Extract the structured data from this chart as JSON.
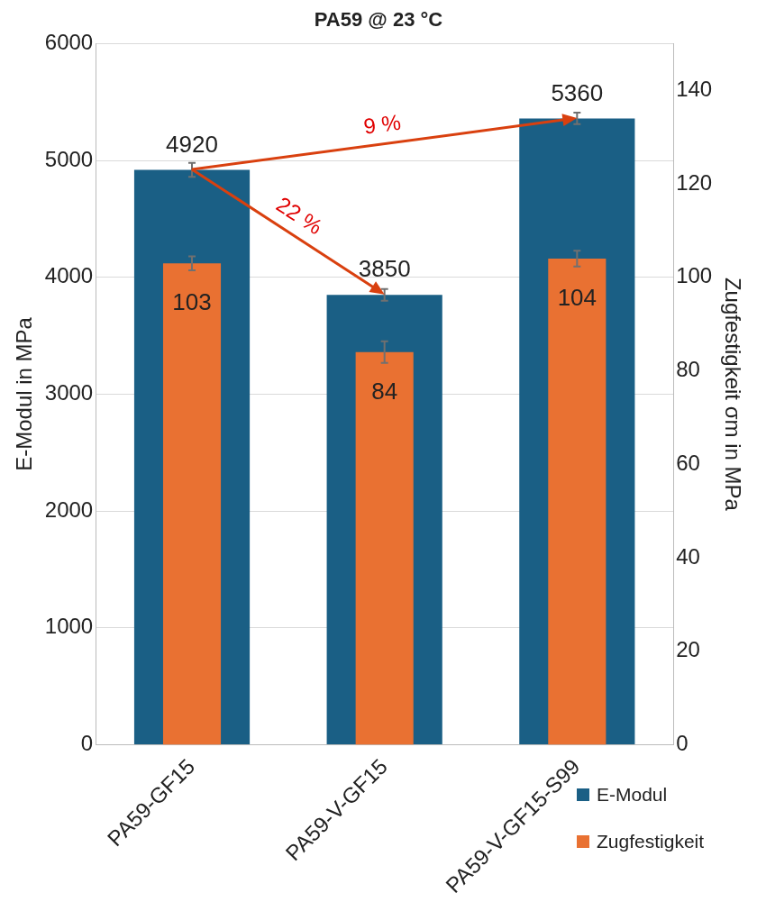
{
  "chart_data": {
    "type": "bar",
    "title": "PA59 @ 23 °C",
    "ylabel": "E-Modul in MPa",
    "y2label": "Zugfestigkeit σm in MPa",
    "categories": [
      "PA59-GF15",
      "PA59-V-GF15",
      "PA59-V-GF15-S99"
    ],
    "series": [
      {
        "name": "E-Modul",
        "color": "#1a5f85",
        "values": [
          4920,
          3850,
          5360
        ],
        "errors": [
          60,
          50,
          50
        ]
      },
      {
        "name": "Zugfestigkeit",
        "color": "#e97132",
        "values": [
          103,
          84,
          104
        ],
        "errors": [
          1.5,
          2.3,
          1.7
        ],
        "axis": "y2"
      }
    ],
    "ylim": [
      0,
      6000
    ],
    "yticks": [
      0,
      1000,
      2000,
      3000,
      4000,
      5000,
      6000
    ],
    "y2lim": [
      0,
      150
    ],
    "y2ticks": [
      0,
      20,
      40,
      60,
      80,
      100,
      120,
      140
    ],
    "annotations": [
      "9 %",
      "22 %"
    ],
    "data_labels": true,
    "grid": "y",
    "legend": "bottom right"
  }
}
